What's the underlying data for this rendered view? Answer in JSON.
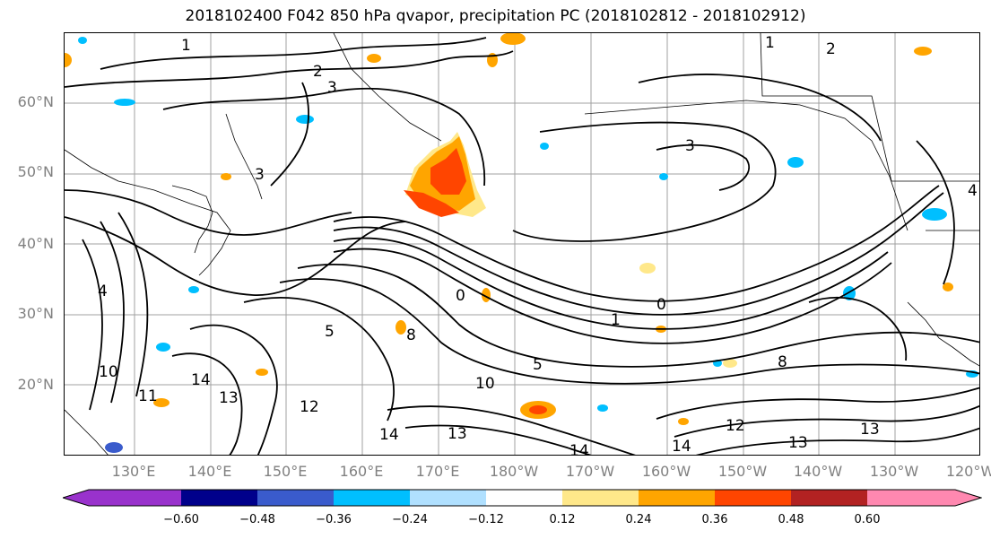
{
  "title": "2018102400 F042 850 hPa qvapor, precipitation PC (2018102812 - 2018102912)",
  "lat_labels": [
    "60°N",
    "50°N",
    "40°N",
    "30°N",
    "20°N"
  ],
  "lon_labels": [
    "130°E",
    "140°E",
    "150°E",
    "160°E",
    "170°E",
    "180°W",
    "170°W",
    "160°W",
    "150°W",
    "140°W",
    "130°W",
    "120°W"
  ],
  "contour_labels": [
    "1",
    "2",
    "3",
    "2",
    "1",
    "3",
    "3",
    "0",
    "0",
    "1",
    "8",
    "5",
    "8",
    "5",
    "4",
    "10",
    "11",
    "10",
    "12",
    "14",
    "13",
    "13",
    "14",
    "12",
    "13",
    "13",
    "14",
    "14",
    "4"
  ],
  "colorbar": {
    "ticks": [
      "−0.60",
      "−0.48",
      "−0.36",
      "−0.24",
      "−0.12",
      "0.12",
      "0.24",
      "0.36",
      "0.48",
      "0.60"
    ],
    "colors": [
      "#9932cc",
      "#00008b",
      "#3a5bcc",
      "#00bfff",
      "#b0e0ff",
      "#ffffff",
      "#ffe88a",
      "#ffa500",
      "#ff4500",
      "#b22222",
      "#ff88b0"
    ]
  }
}
